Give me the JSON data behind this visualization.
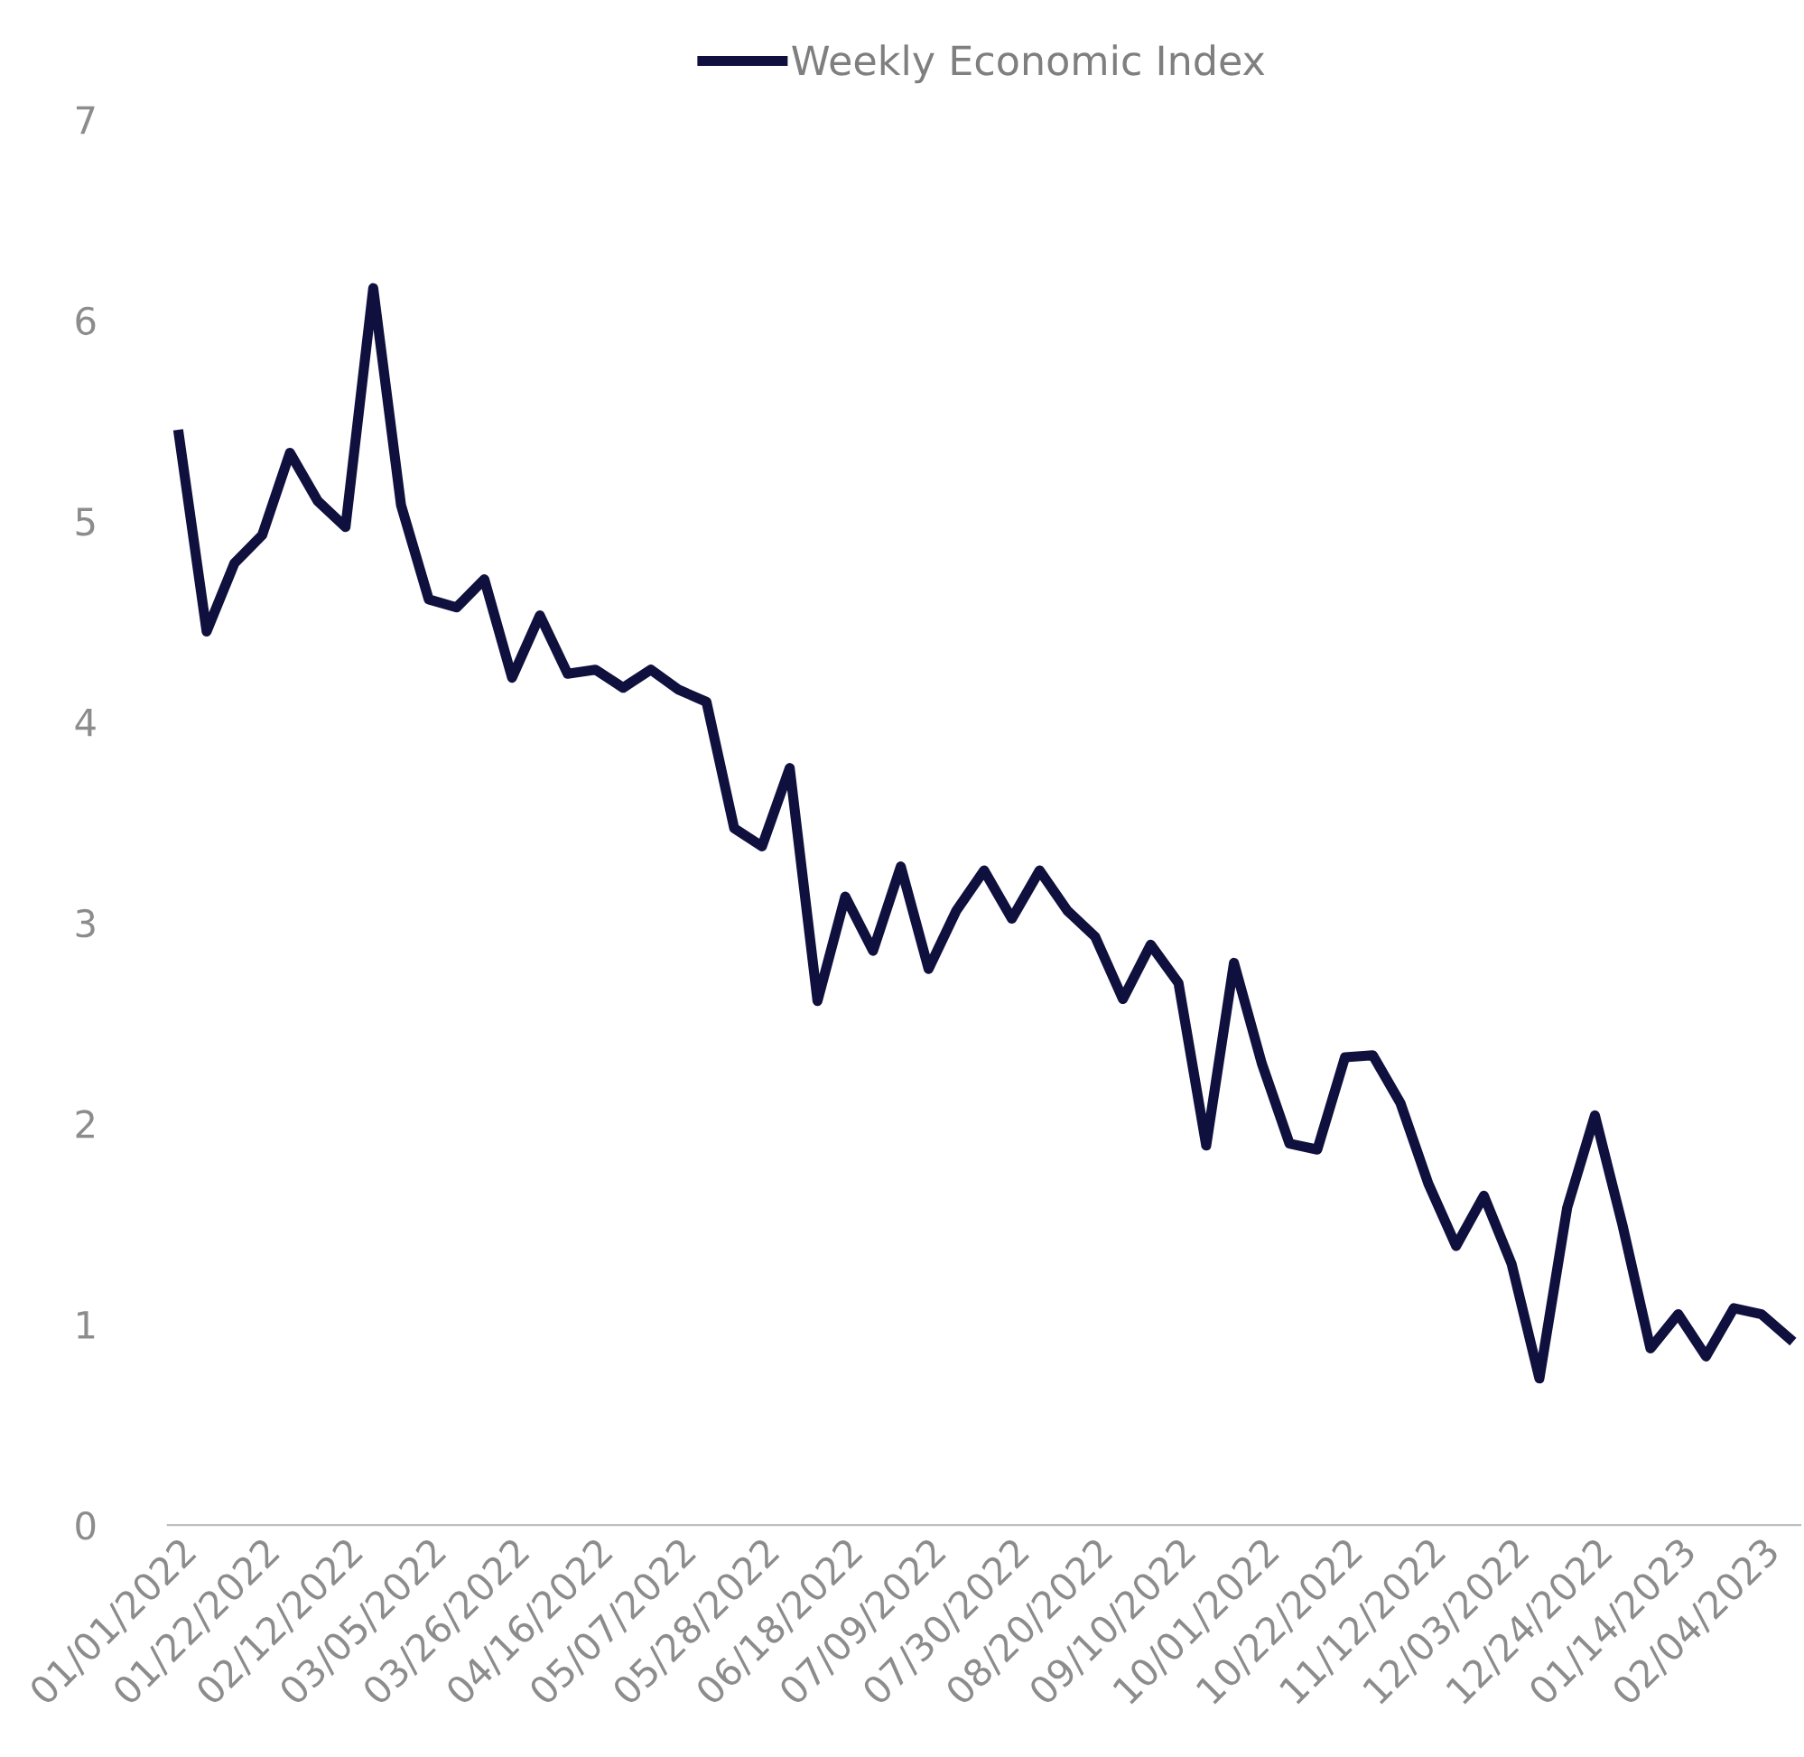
{
  "chart_data": {
    "type": "line",
    "categories": [
      "01/01/2022",
      null,
      null,
      "01/22/2022",
      null,
      null,
      "02/12/2022",
      null,
      null,
      "03/05/2022",
      null,
      null,
      "03/26/2022",
      null,
      null,
      "04/16/2022",
      null,
      null,
      "05/07/2022",
      null,
      null,
      "05/28/2022",
      null,
      null,
      "06/18/2022",
      null,
      null,
      "07/09/2022",
      null,
      null,
      "07/30/2022",
      null,
      null,
      "08/20/2022",
      null,
      null,
      "09/10/2022",
      null,
      null,
      "10/01/2022",
      null,
      null,
      "10/22/2022",
      null,
      null,
      "11/12/2022",
      null,
      null,
      "12/03/2022",
      null,
      null,
      "12/24/2022",
      null,
      null,
      "01/14/2023",
      null,
      null,
      "02/04/2023",
      null
    ],
    "series": [
      {
        "name": "Weekly Economic Index",
        "color": "#10103f",
        "values": [
          5.43,
          4.45,
          4.79,
          4.93,
          5.34,
          5.1,
          4.97,
          6.16,
          5.08,
          4.61,
          4.57,
          4.71,
          4.22,
          4.53,
          4.24,
          4.26,
          4.17,
          4.26,
          4.16,
          4.1,
          3.47,
          3.38,
          3.77,
          2.61,
          3.13,
          2.86,
          3.28,
          2.77,
          3.06,
          3.26,
          3.02,
          3.26,
          3.06,
          2.93,
          2.62,
          2.89,
          2.7,
          1.89,
          2.8,
          2.3,
          1.9,
          1.87,
          2.33,
          2.34,
          2.1,
          1.7,
          1.39,
          1.64,
          1.3,
          0.73,
          1.58,
          2.04,
          1.49,
          0.88,
          1.05,
          0.84,
          1.08,
          1.05,
          0.93
        ]
      }
    ],
    "ylim": [
      0,
      7
    ],
    "yticks": [
      0,
      1,
      2,
      3,
      4,
      5,
      6,
      7
    ],
    "grid": false,
    "legend": "top",
    "marker": "none",
    "line_style": "solid"
  }
}
